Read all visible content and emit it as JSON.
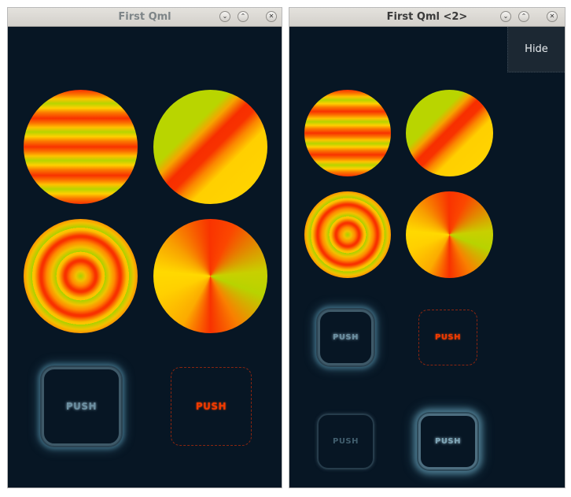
{
  "windows": [
    {
      "title": "First Qml",
      "controls": {
        "minimize": "⌄",
        "maximize": "⌃",
        "close": "✕"
      },
      "gradients": [
        "linear-gradient",
        "diagonal-gradient",
        "radial-gradient",
        "conical-gradient"
      ],
      "buttons": [
        {
          "label": "PUSH"
        },
        {
          "label": "PUSH"
        }
      ]
    },
    {
      "title": "First Qml <2>",
      "controls": {
        "minimize": "⌄",
        "maximize": "⌃",
        "close": "✕"
      },
      "hide_label": "Hide",
      "gradients": [
        "linear-gradient",
        "diagonal-gradient",
        "radial-gradient",
        "conical-gradient"
      ],
      "buttons": [
        {
          "label": "PUSH"
        },
        {
          "label": "PUSH"
        },
        {
          "label": "PUSH"
        },
        {
          "label": "PUSH"
        }
      ]
    }
  ],
  "colors": {
    "background": "#071624",
    "red": "#f83200",
    "orange": "#fb7100",
    "yellow": "#ffd000",
    "lime": "#b7d400",
    "button_glow": "#3c6a80"
  }
}
